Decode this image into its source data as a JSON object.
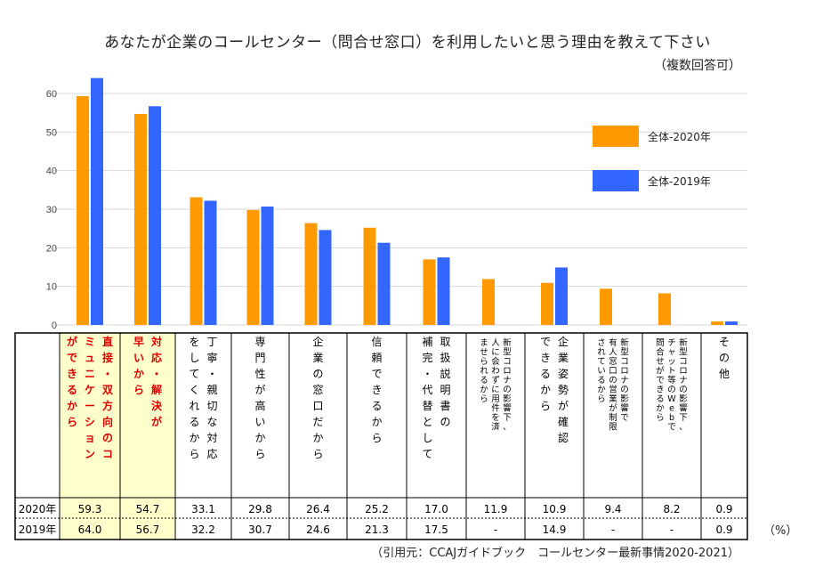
{
  "title": "あなたが企業のコールセンター（問合せ窓口）を利用したいと思う理由を教えて下さい",
  "subtitle": "（複数回答可）",
  "source": "（引用元：CCAJガイドブック　コールセンター最新事情2020-2021）",
  "unit": "（%）",
  "colors": {
    "s2020": "#FF9900",
    "s2019": "#3366FF",
    "highlight_text": "#E00000",
    "highlight_bg": "#FFFFCC"
  },
  "chart_data": {
    "type": "bar",
    "ylim": [
      0,
      60
    ],
    "yticks": [
      "0",
      "10",
      "20",
      "30",
      "40",
      "50",
      "60"
    ],
    "grid": true,
    "legend_position": "right",
    "categories": [
      "直接・双方向のコミュニケーションができるから",
      "対応・解決が早いから",
      "丁寧・親切な対応をしてくれるから",
      "専門性が高いから",
      "企業の窓口だから",
      "信頼できるから",
      "取扱説明書の補完・代替として",
      "新型コロナの影響下、人に会わずに用件を済ませられるから",
      "企業姿勢が確認できるから",
      "新型コロナの影響で有人窓口の営業が制限されているから",
      "新型コロナの影響下、チャット等のWebで問合せができるから",
      "その他"
    ],
    "category_columns": [
      [
        "直接・双方向のコ",
        "ミュニケーション",
        "ができるから"
      ],
      [
        "対応・解決が",
        "早いから"
      ],
      [
        "丁寧・親切な対応",
        "をしてくれるから"
      ],
      [
        "専門性が高いから"
      ],
      [
        "企業の窓口だから"
      ],
      [
        "信頼できるから"
      ],
      [
        "取扱説明書の",
        "補完・代替として"
      ],
      [
        "新型コロナの影響下、",
        "人に会わずに用件を済",
        "ませられるから"
      ],
      [
        "企業姿勢が確認",
        "できるから"
      ],
      [
        "新型コロナの影響で",
        "有人窓口の営業が制限",
        "されているから"
      ],
      [
        "新型コロナの影響下、",
        "チャット等のWebで",
        "問合せができるから"
      ],
      [
        "その他"
      ]
    ],
    "highlight": [
      true,
      true,
      false,
      false,
      false,
      false,
      false,
      false,
      false,
      false,
      false,
      false
    ],
    "series": [
      {
        "name": "全体-2020年",
        "row_label": "2020年",
        "values": [
          59.3,
          54.7,
          33.1,
          29.8,
          26.4,
          25.2,
          17.0,
          11.9,
          10.9,
          9.4,
          8.2,
          0.9
        ],
        "display": [
          "59.3",
          "54.7",
          "33.1",
          "29.8",
          "26.4",
          "25.2",
          "17.0",
          "11.9",
          "10.9",
          "9.4",
          "8.2",
          "0.9"
        ]
      },
      {
        "name": "全体-2019年",
        "row_label": "2019年",
        "values": [
          64.0,
          56.7,
          32.2,
          30.7,
          24.6,
          21.3,
          17.5,
          null,
          14.9,
          null,
          null,
          0.9
        ],
        "display": [
          "64.0",
          "56.7",
          "32.2",
          "30.7",
          "24.6",
          "21.3",
          "17.5",
          "-",
          "14.9",
          "-",
          "-",
          "0.9"
        ]
      }
    ]
  }
}
